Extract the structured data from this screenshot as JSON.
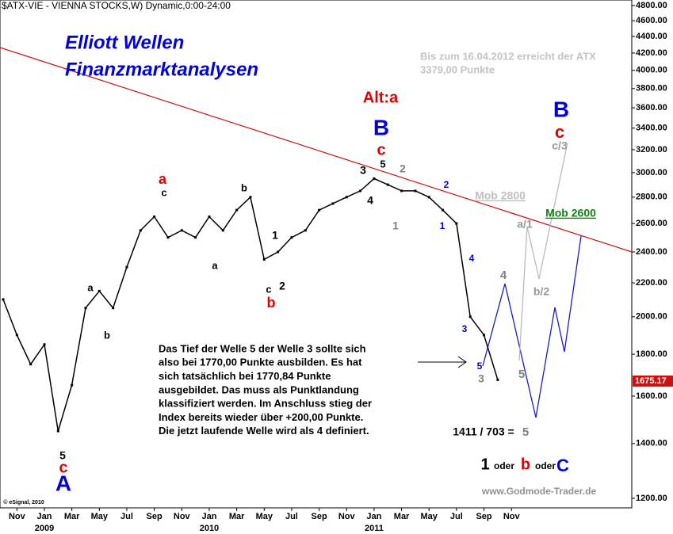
{
  "chart_data": {
    "type": "line",
    "title": "$ATX-VIE - VIENNA STOCKS,W) Dynamic,0:00-24:00",
    "categories": [
      null,
      "Nov",
      null,
      "Jan",
      null,
      "Mar",
      null,
      "May",
      null,
      "Jul",
      null,
      "Sep",
      null,
      "Nov",
      null,
      "Jan",
      null,
      "Mar",
      null,
      "May",
      null,
      "Jul",
      null,
      "Sep",
      null,
      "Nov",
      null,
      "Jan",
      null,
      "Mar",
      null,
      "May",
      null,
      "Jul",
      null,
      "Sep",
      null,
      "Nov"
    ],
    "year_labels": [
      "2009",
      "2010",
      "2011"
    ],
    "series": [
      {
        "name": "ATX",
        "color": "#000000",
        "values": [
          2100,
          1900,
          1750,
          1850,
          1450,
          1650,
          2050,
          2150,
          2050,
          2300,
          2550,
          2650,
          2500,
          2550,
          2500,
          2650,
          2550,
          2700,
          2800,
          2350,
          2400,
          2500,
          2550,
          2700,
          2750,
          2800,
          2850,
          2950,
          2900,
          2850,
          2850,
          2800,
          2700,
          2600,
          2000,
          1900,
          1675,
          null
        ]
      }
    ],
    "last_price_label": "1675.17",
    "log_y": true,
    "ylim": [
      1150,
      4900
    ],
    "yticks": [
      {
        "value": 1200,
        "label": "1200.00"
      },
      {
        "value": 1400,
        "label": "1400.00"
      },
      {
        "value": 1600,
        "label": "1600.00"
      },
      {
        "value": 1800,
        "label": "1800.00"
      },
      {
        "value": 2000,
        "label": "2000.00"
      },
      {
        "value": 2200,
        "label": "2200.00"
      },
      {
        "value": 2400,
        "label": "2400.00"
      },
      {
        "value": 2600,
        "label": "2600.00"
      },
      {
        "value": 2800,
        "label": "2800.00"
      },
      {
        "value": 3000,
        "label": "3000.00"
      },
      {
        "value": 3200,
        "label": "3200.00"
      },
      {
        "value": 3400,
        "label": "3400.00"
      },
      {
        "value": 3600,
        "label": "3600.00"
      },
      {
        "value": 3800,
        "label": "3800.00"
      },
      {
        "value": 4000,
        "label": "4000.00"
      },
      {
        "value": 4200,
        "label": "4200.00"
      },
      {
        "value": 4400,
        "label": "4400.00"
      },
      {
        "value": 4600,
        "label": "4600.00"
      },
      {
        "value": 4800,
        "label": "4800.00"
      }
    ],
    "heading": [
      "Elliott Wellen",
      "Finanzmarktanalysen"
    ],
    "note": [
      "Bis zum 16.04.2012 erreicht der ATX",
      "3379,00 Punkte"
    ],
    "paragraph": [
      "Das Tief der Welle 5 der Welle 3 sollte sich",
      "also bei 1770,00 Punkte ausbilden. Es hat",
      "sich tatsächlich bei 1770,84 Punkte",
      "ausgebildet. Das muss als Punktlandung",
      "klassifiziert werden. Im Anschluss stieg der",
      "Index bereits wieder über +200,00 Punkte.",
      "Die jetzt laufende Welle wird als 4 definiert."
    ],
    "annotations": [
      {
        "text": "a",
        "color": "#e00000"
      },
      {
        "text": "c",
        "color": "#000000"
      },
      {
        "text": "b",
        "color": "#000000"
      },
      {
        "text": "a",
        "color": "#000000"
      },
      {
        "text": "b",
        "color": "#000000"
      },
      {
        "text": "a",
        "color": "#000000"
      },
      {
        "text": "1",
        "color": "#000000"
      },
      {
        "text": "2",
        "color": "#000000"
      },
      {
        "text": "c",
        "color": "#000000"
      },
      {
        "text": "b",
        "color": "#e00000"
      },
      {
        "text": "3",
        "color": "#000000"
      },
      {
        "text": "5",
        "color": "#000000"
      },
      {
        "text": "4",
        "color": "#000000"
      },
      {
        "text": "2",
        "color": "#808080"
      },
      {
        "text": "1",
        "color": "#808080"
      },
      {
        "text": "2",
        "color": "#0000dd"
      },
      {
        "text": "1",
        "color": "#0000dd"
      },
      {
        "text": "4",
        "color": "#0000dd"
      },
      {
        "text": "3",
        "color": "#0000dd"
      },
      {
        "text": "5",
        "color": "#0000dd"
      },
      {
        "text": "3",
        "color": "#808080"
      },
      {
        "text": "4",
        "color": "#808080"
      },
      {
        "text": "5",
        "color": "#808080"
      },
      {
        "text": "B",
        "color": "#0000dd"
      },
      {
        "text": "c",
        "color": "#e00000"
      },
      {
        "text": "Alt:a",
        "color": "#e00000"
      },
      {
        "text": "B",
        "color": "#0000dd"
      },
      {
        "text": "c",
        "color": "#e00000"
      },
      {
        "text": "c/3",
        "color": "#999999"
      },
      {
        "text": "a/1",
        "color": "#999999"
      },
      {
        "text": "b/2",
        "color": "#999999"
      },
      {
        "text": "Mob 2800",
        "color": "#c0c0c0"
      },
      {
        "text": "Mob 2600",
        "color": "#108010"
      },
      {
        "text": "5",
        "color": "#000000"
      },
      {
        "text": "c",
        "color": "#e00000"
      },
      {
        "text": "A",
        "color": "#0000dd"
      },
      {
        "text": "1411 / 703 =",
        "color": "#000000"
      },
      {
        "text": "5",
        "color": "#808080"
      },
      {
        "text": "1",
        "color": "#000000"
      },
      {
        "text": "oder",
        "color": "#000000"
      },
      {
        "text": "b",
        "color": "#e00000"
      },
      {
        "text": "oder",
        "color": "#000000"
      },
      {
        "text": "C",
        "color": "#0000dd"
      },
      {
        "text": "www.Godmode-Trader.de",
        "color": "#909090"
      },
      {
        "text": "© eSignal, 2010",
        "color": "#000000"
      }
    ]
  }
}
